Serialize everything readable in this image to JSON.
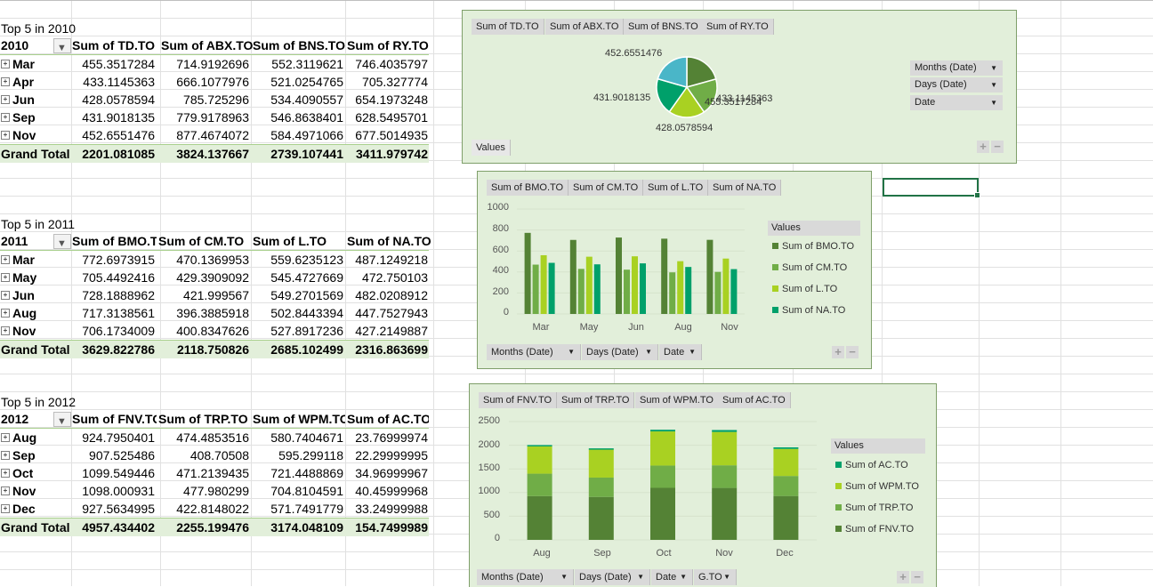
{
  "colors": {
    "c1": "#548235",
    "c2": "#70ad47",
    "c3": "#a9d18e",
    "c4": "#00a06a",
    "header_bg": "#e2efda",
    "chart_bg": "#e2efda"
  },
  "pivots": [
    {
      "title": "Top 5 in 2010",
      "row_label": "2010",
      "columns": [
        "Sum of TD.TO",
        "Sum of ABX.TO",
        "Sum of BNS.TO",
        "Sum of RY.TO"
      ],
      "rows": [
        {
          "label": "Mar",
          "values": [
            "455.3517284",
            "714.9192696",
            "552.3119621",
            "746.4035797"
          ]
        },
        {
          "label": "Apr",
          "values": [
            "433.1145363",
            "666.1077976",
            "521.0254765",
            "705.327774"
          ]
        },
        {
          "label": "Jun",
          "values": [
            "428.0578594",
            "785.725296",
            "534.4090557",
            "654.1973248"
          ]
        },
        {
          "label": "Sep",
          "values": [
            "431.9018135",
            "779.9178963",
            "546.8638401",
            "628.5495701"
          ]
        },
        {
          "label": "Nov",
          "values": [
            "452.6551476",
            "877.4674072",
            "584.4971066",
            "677.5014935"
          ]
        }
      ],
      "total_label": "Grand Total",
      "totals": [
        "2201.081085",
        "3824.137667",
        "2739.107441",
        "3411.979742"
      ]
    },
    {
      "title": "Top 5 in 2011",
      "row_label": "2011",
      "columns": [
        "Sum of BMO.TO",
        "Sum of CM.TO",
        "Sum of L.TO",
        "Sum of NA.TO"
      ],
      "rows": [
        {
          "label": "Mar",
          "values": [
            "772.6973915",
            "470.1369953",
            "559.6235123",
            "487.1249218"
          ]
        },
        {
          "label": "May",
          "values": [
            "705.4492416",
            "429.3909092",
            "545.4727669",
            "472.750103"
          ]
        },
        {
          "label": "Jun",
          "values": [
            "728.1888962",
            "421.999567",
            "549.2701569",
            "482.0208912"
          ]
        },
        {
          "label": "Aug",
          "values": [
            "717.3138561",
            "396.3885918",
            "502.8443394",
            "447.7527943"
          ]
        },
        {
          "label": "Nov",
          "values": [
            "706.1734009",
            "400.8347626",
            "527.8917236",
            "427.2149887"
          ]
        }
      ],
      "total_label": "Grand Total",
      "totals": [
        "3629.822786",
        "2118.750826",
        "2685.102499",
        "2316.863699"
      ]
    },
    {
      "title": "Top 5 in 2012",
      "row_label": "2012",
      "columns": [
        "Sum of FNV.TO",
        "Sum of TRP.TO",
        "Sum of WPM.TO",
        "Sum of AC.TO"
      ],
      "rows": [
        {
          "label": "Aug",
          "values": [
            "924.7950401",
            "474.4853516",
            "580.7404671",
            "23.76999974"
          ]
        },
        {
          "label": "Sep",
          "values": [
            "907.525486",
            "408.70508",
            "595.299118",
            "22.29999995"
          ]
        },
        {
          "label": "Oct",
          "values": [
            "1099.549446",
            "471.2139435",
            "721.4488869",
            "34.96999967"
          ]
        },
        {
          "label": "Nov",
          "values": [
            "1098.000931",
            "477.980299",
            "704.8104591",
            "40.45999968"
          ]
        },
        {
          "label": "Dec",
          "values": [
            "927.5634995",
            "422.8148022",
            "571.7491779",
            "33.24999988"
          ]
        }
      ],
      "total_label": "Grand Total",
      "totals": [
        "4957.434402",
        "2255.199476",
        "3174.048109",
        "154.7499989"
      ]
    }
  ],
  "chart_data": [
    {
      "type": "pie",
      "field_buttons": [
        "Sum of TD.TO",
        "Sum of ABX.TO",
        "Sum of BNS.TO",
        "Sum of RY.TO"
      ],
      "values": [
        455.3517284,
        433.1145363,
        428.0578594,
        431.9018135,
        452.6551476
      ],
      "labels": [
        "455.3517284",
        "433.1145363",
        "428.0578594",
        "431.9018135",
        "452.6551476"
      ],
      "slice_colors": [
        "#548235",
        "#70ad47",
        "#a9d122",
        "#00a06a",
        "#4ab6c8"
      ],
      "values_button": "Values",
      "filters": [
        "Months (Date)",
        "Days (Date)",
        "Date"
      ]
    },
    {
      "type": "bar",
      "field_buttons": [
        "Sum of BMO.TO",
        "Sum of CM.TO",
        "Sum of L.TO",
        "Sum of NA.TO"
      ],
      "categories": [
        "Mar",
        "May",
        "Jun",
        "Aug",
        "Nov"
      ],
      "series": [
        {
          "name": "Sum of BMO.TO",
          "values": [
            772.6973915,
            705.4492416,
            728.1888962,
            717.3138561,
            706.1734009
          ]
        },
        {
          "name": "Sum of CM.TO",
          "values": [
            470.1369953,
            429.3909092,
            421.999567,
            396.3885918,
            400.8347626
          ]
        },
        {
          "name": "Sum of L.TO",
          "values": [
            559.6235123,
            545.4727669,
            549.2701569,
            502.8443394,
            527.8917236
          ]
        },
        {
          "name": "Sum of NA.TO",
          "values": [
            487.1249218,
            472.750103,
            482.0208912,
            447.7527943,
            427.2149887
          ]
        }
      ],
      "ylim": [
        0,
        1000
      ],
      "yticks": [
        "0",
        "200",
        "400",
        "600",
        "800",
        "1000"
      ],
      "legend_title": "Values",
      "legend_position": "right",
      "filters": [
        "Months (Date)",
        "Days (Date)",
        "Date"
      ]
    },
    {
      "type": "bar",
      "stacked": true,
      "field_buttons": [
        "Sum of FNV.TO",
        "Sum of TRP.TO",
        "Sum of WPM.TO",
        "Sum of AC.TO"
      ],
      "categories": [
        "Aug",
        "Sep",
        "Oct",
        "Nov",
        "Dec"
      ],
      "series": [
        {
          "name": "Sum of FNV.TO",
          "values": [
            924.7950401,
            907.525486,
            1099.549446,
            1098.000931,
            927.5634995
          ]
        },
        {
          "name": "Sum of TRP.TO",
          "values": [
            474.4853516,
            408.70508,
            471.2139435,
            477.980299,
            422.8148022
          ]
        },
        {
          "name": "Sum of WPM.TO",
          "values": [
            580.7404671,
            595.299118,
            721.4488869,
            704.8104591,
            571.7491779
          ]
        },
        {
          "name": "Sum of AC.TO",
          "values": [
            23.76999974,
            22.29999995,
            34.96999967,
            40.45999968,
            33.24999988
          ]
        }
      ],
      "ylim": [
        0,
        2500
      ],
      "yticks": [
        "0",
        "500",
        "1000",
        "1500",
        "2000",
        "2500"
      ],
      "legend_title": "Values",
      "legend_position": "right",
      "legend_order": [
        "Sum of AC.TO",
        "Sum of WPM.TO",
        "Sum of TRP.TO",
        "Sum of FNV.TO"
      ],
      "filters": [
        "Months (Date)",
        "Days (Date)",
        "Date",
        "G.TO"
      ]
    }
  ]
}
